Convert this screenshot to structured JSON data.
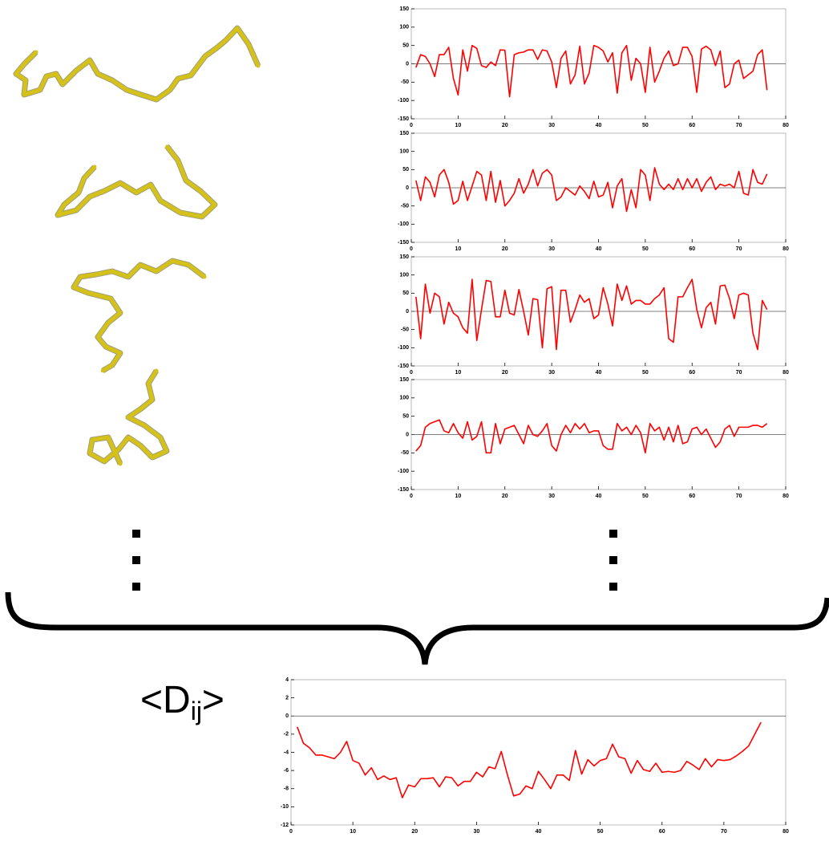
{
  "chart_data": [
    {
      "type": "line",
      "color": "#ff0000",
      "xlim": [
        0,
        80
      ],
      "ylim": [
        -150,
        150
      ],
      "xticks": [
        0,
        10,
        20,
        30,
        40,
        50,
        60,
        70,
        80
      ],
      "yticks": [
        -150,
        -100,
        -50,
        0,
        50,
        100,
        150
      ],
      "x": [
        1,
        2,
        3,
        4,
        5,
        6,
        7,
        8,
        9,
        10,
        11,
        12,
        13,
        14,
        15,
        16,
        17,
        18,
        19,
        20,
        21,
        22,
        23,
        24,
        25,
        26,
        27,
        28,
        29,
        30,
        31,
        32,
        33,
        34,
        35,
        36,
        37,
        38,
        39,
        40,
        41,
        42,
        43,
        44,
        45,
        46,
        47,
        48,
        49,
        50,
        51,
        52,
        53,
        54,
        55,
        56,
        57,
        58,
        59,
        60,
        61,
        62,
        63,
        64,
        65,
        66,
        67,
        68,
        69,
        70,
        71,
        72,
        73,
        74,
        75,
        76
      ],
      "values": [
        -10,
        25,
        20,
        0,
        -35,
        25,
        25,
        45,
        -40,
        -85,
        38,
        -20,
        50,
        42,
        -5,
        -10,
        5,
        -5,
        38,
        37,
        -90,
        25,
        30,
        32,
        38,
        38,
        12,
        38,
        35,
        5,
        -65,
        15,
        35,
        -55,
        -30,
        48,
        -55,
        -25,
        50,
        45,
        35,
        5,
        30,
        -80,
        30,
        50,
        -45,
        15,
        0,
        -78,
        45,
        -50,
        -20,
        15,
        35,
        -5,
        0,
        45,
        45,
        20,
        -78,
        40,
        48,
        38,
        -5,
        35,
        -65,
        -55,
        0,
        10,
        -40,
        -30,
        -20,
        25,
        38,
        -72
      ]
    },
    {
      "type": "line",
      "color": "#ff0000",
      "xlim": [
        0,
        80
      ],
      "ylim": [
        -150,
        150
      ],
      "xticks": [
        0,
        10,
        20,
        30,
        40,
        50,
        60,
        70,
        80
      ],
      "yticks": [
        -150,
        -100,
        -50,
        0,
        50,
        100,
        150
      ],
      "x": [
        1,
        2,
        3,
        4,
        5,
        6,
        7,
        8,
        9,
        10,
        11,
        12,
        13,
        14,
        15,
        16,
        17,
        18,
        19,
        20,
        21,
        22,
        23,
        24,
        25,
        26,
        27,
        28,
        29,
        30,
        31,
        32,
        33,
        34,
        35,
        36,
        37,
        38,
        39,
        40,
        41,
        42,
        43,
        44,
        45,
        46,
        47,
        48,
        49,
        50,
        51,
        52,
        53,
        54,
        55,
        56,
        57,
        58,
        59,
        60,
        61,
        62,
        63,
        64,
        65,
        66,
        67,
        68,
        69,
        70,
        71,
        72,
        73,
        74,
        75,
        76
      ],
      "values": [
        20,
        -35,
        30,
        15,
        -25,
        35,
        50,
        15,
        -45,
        -35,
        18,
        -35,
        5,
        45,
        35,
        -35,
        45,
        -40,
        20,
        -50,
        -35,
        -15,
        25,
        -15,
        10,
        50,
        5,
        40,
        50,
        35,
        -35,
        -25,
        0,
        -10,
        -20,
        5,
        -10,
        -30,
        18,
        -25,
        -20,
        15,
        -55,
        5,
        25,
        -65,
        -5,
        -55,
        50,
        35,
        -35,
        55,
        10,
        -5,
        10,
        -5,
        25,
        -5,
        25,
        0,
        25,
        -10,
        15,
        30,
        -5,
        10,
        5,
        10,
        0,
        45,
        -15,
        -20,
        50,
        15,
        10,
        38
      ]
    },
    {
      "type": "line",
      "color": "#ff0000",
      "xlim": [
        0,
        80
      ],
      "ylim": [
        -150,
        150
      ],
      "xticks": [
        0,
        10,
        20,
        30,
        40,
        50,
        60,
        70,
        80
      ],
      "yticks": [
        -150,
        -100,
        -50,
        0,
        50,
        100,
        150
      ],
      "x": [
        1,
        2,
        3,
        4,
        5,
        6,
        7,
        8,
        9,
        10,
        11,
        12,
        13,
        14,
        15,
        16,
        17,
        18,
        19,
        20,
        21,
        22,
        23,
        24,
        25,
        26,
        27,
        28,
        29,
        30,
        31,
        32,
        33,
        34,
        35,
        36,
        37,
        38,
        39,
        40,
        41,
        42,
        43,
        44,
        45,
        46,
        47,
        48,
        49,
        50,
        51,
        52,
        53,
        54,
        55,
        56,
        57,
        58,
        59,
        60,
        61,
        62,
        63,
        64,
        65,
        66,
        67,
        68,
        69,
        70,
        71,
        72,
        73,
        74,
        75,
        76
      ],
      "values": [
        40,
        -75,
        75,
        -5,
        50,
        40,
        -35,
        25,
        -5,
        -15,
        -45,
        -60,
        88,
        -80,
        5,
        85,
        82,
        -15,
        -15,
        58,
        -5,
        -10,
        60,
        0,
        -65,
        35,
        32,
        -100,
        62,
        68,
        -105,
        58,
        58,
        -30,
        5,
        45,
        25,
        35,
        -20,
        -10,
        65,
        20,
        -40,
        75,
        30,
        70,
        20,
        30,
        30,
        20,
        20,
        35,
        45,
        65,
        -75,
        -85,
        40,
        40,
        65,
        88,
        5,
        -45,
        10,
        25,
        -35,
        70,
        72,
        35,
        -20,
        45,
        50,
        45,
        -60,
        -105,
        30,
        5
      ]
    },
    {
      "type": "line",
      "color": "#ff0000",
      "xlim": [
        0,
        80
      ],
      "ylim": [
        -150,
        150
      ],
      "xticks": [
        0,
        10,
        20,
        30,
        40,
        50,
        60,
        70,
        80
      ],
      "yticks": [
        -150,
        -100,
        -50,
        0,
        50,
        100,
        150
      ],
      "x": [
        1,
        2,
        3,
        4,
        5,
        6,
        7,
        8,
        9,
        10,
        11,
        12,
        13,
        14,
        15,
        16,
        17,
        18,
        19,
        20,
        21,
        22,
        23,
        24,
        25,
        26,
        27,
        28,
        29,
        30,
        31,
        32,
        33,
        34,
        35,
        36,
        37,
        38,
        39,
        40,
        41,
        42,
        43,
        44,
        45,
        46,
        47,
        48,
        49,
        50,
        51,
        52,
        53,
        54,
        55,
        56,
        57,
        58,
        59,
        60,
        61,
        62,
        63,
        64,
        65,
        66,
        67,
        68,
        69,
        70,
        71,
        72,
        73,
        74,
        75,
        76
      ],
      "values": [
        -45,
        -30,
        20,
        30,
        35,
        40,
        10,
        5,
        30,
        5,
        -10,
        35,
        -15,
        -5,
        35,
        -50,
        -50,
        30,
        -25,
        15,
        20,
        25,
        0,
        -25,
        25,
        0,
        -5,
        10,
        30,
        -30,
        -45,
        0,
        25,
        5,
        30,
        15,
        30,
        5,
        10,
        10,
        -30,
        -40,
        -40,
        30,
        10,
        20,
        0,
        25,
        5,
        -50,
        30,
        10,
        20,
        -15,
        20,
        -20,
        25,
        -25,
        -20,
        15,
        20,
        0,
        15,
        -10,
        -35,
        -20,
        15,
        25,
        -5,
        20,
        20,
        20,
        25,
        25,
        20,
        30
      ]
    },
    {
      "type": "line",
      "color": "#ff0000",
      "xlim": [
        0,
        80
      ],
      "ylim": [
        -12,
        4
      ],
      "xticks": [
        0,
        10,
        20,
        30,
        40,
        50,
        60,
        70,
        80
      ],
      "yticks": [
        -12,
        -10,
        -8,
        -6,
        -4,
        -2,
        0,
        2,
        4
      ],
      "annotation": [
        "<D",
        "ij",
        ">"
      ],
      "x": [
        1,
        2,
        3,
        4,
        5,
        6,
        7,
        8,
        9,
        10,
        11,
        12,
        13,
        14,
        15,
        16,
        17,
        18,
        19,
        20,
        21,
        22,
        23,
        24,
        25,
        26,
        27,
        28,
        29,
        30,
        31,
        32,
        33,
        34,
        35,
        36,
        37,
        38,
        39,
        40,
        41,
        42,
        43,
        44,
        45,
        46,
        47,
        48,
        49,
        50,
        51,
        52,
        53,
        54,
        55,
        56,
        57,
        58,
        59,
        60,
        61,
        62,
        63,
        64,
        65,
        66,
        67,
        68,
        69,
        70,
        71,
        72,
        73,
        74,
        75,
        76
      ],
      "values": [
        -1.2,
        -3,
        -3.5,
        -4.3,
        -4.3,
        -4.5,
        -4.7,
        -4,
        -2.8,
        -4.9,
        -5.2,
        -6.5,
        -5.7,
        -7,
        -6.6,
        -7,
        -6.8,
        -9,
        -7.6,
        -7.8,
        -6.9,
        -6.9,
        -6.8,
        -7.8,
        -6.7,
        -6.8,
        -7.7,
        -7.2,
        -7.2,
        -6.2,
        -6.7,
        -5.6,
        -5.8,
        -3.9,
        -6.5,
        -8.8,
        -8.6,
        -7.7,
        -8,
        -6.1,
        -7,
        -8,
        -6.5,
        -6.5,
        -7.1,
        -3.8,
        -6.4,
        -4.8,
        -5.5,
        -4.9,
        -4.7,
        -3.1,
        -4.5,
        -4.7,
        -6.3,
        -4.9,
        -5.9,
        -6.1,
        -5.2,
        -6.2,
        -6.1,
        -6.2,
        -6,
        -5,
        -5.4,
        -5.9,
        -4.7,
        -5.6,
        -4.8,
        -4.9,
        -4.8,
        -4.4,
        -3.9,
        -3.3,
        -2,
        -0.7
      ]
    }
  ]
}
